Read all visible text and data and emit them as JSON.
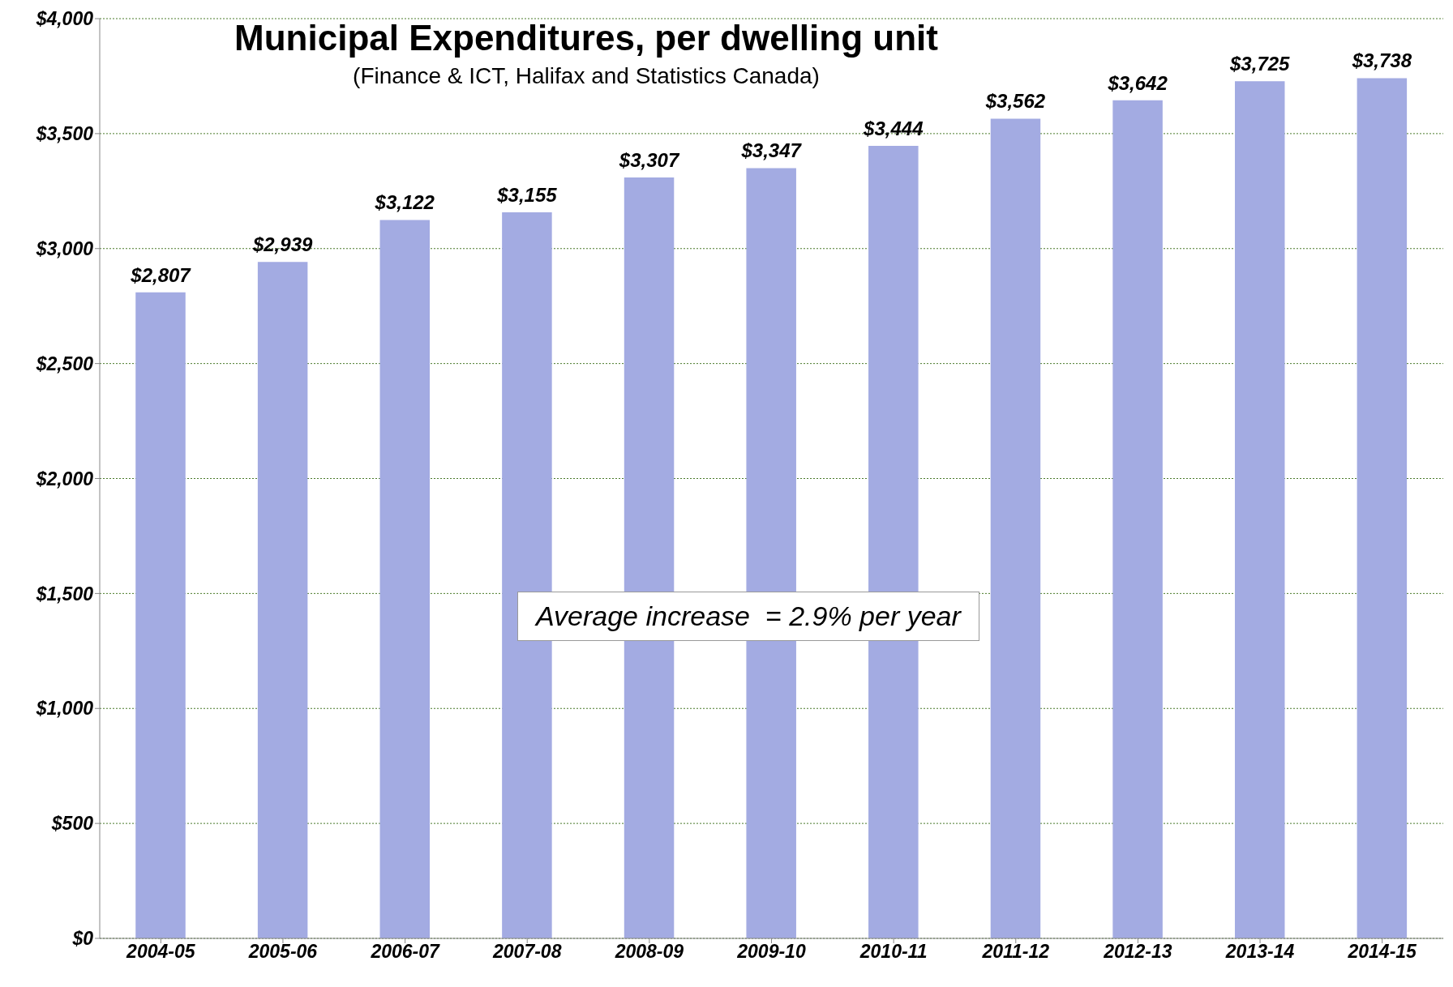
{
  "chart_data": {
    "type": "bar",
    "title": "Municipal Expenditures, per dwelling unit",
    "subtitle": "(Finance & ICT, Halifax and Statistics Canada)",
    "categories": [
      "2004-05",
      "2005-06",
      "2006-07",
      "2007-08",
      "2008-09",
      "2009-10",
      "2010-11",
      "2011-12",
      "2012-13",
      "2013-14",
      "2014-15"
    ],
    "values": [
      2807,
      2939,
      3122,
      3155,
      3307,
      3347,
      3444,
      3562,
      3642,
      3725,
      3738
    ],
    "value_labels": [
      "$2,807",
      "$2,939",
      "$3,122",
      "$3,155",
      "$3,307",
      "$3,347",
      "$3,444",
      "$3,562",
      "$3,642",
      "$3,725",
      "$3,738"
    ],
    "color": "#a3abe2",
    "ylim": [
      0,
      4000
    ],
    "yticks": [
      {
        "value": 0,
        "label": "$0"
      },
      {
        "value": 500,
        "label": "$500"
      },
      {
        "value": 1000,
        "label": "$1,000"
      },
      {
        "value": 1500,
        "label": "$1,500"
      },
      {
        "value": 2000,
        "label": "$2,000"
      },
      {
        "value": 2500,
        "label": "$2,500"
      },
      {
        "value": 3000,
        "label": "$3,000"
      },
      {
        "value": 3500,
        "label": "$3,500"
      },
      {
        "value": 4000,
        "label": "$4,000"
      }
    ],
    "grid": "y",
    "annotations": [
      "Average increase  = 2.9% per year"
    ]
  }
}
